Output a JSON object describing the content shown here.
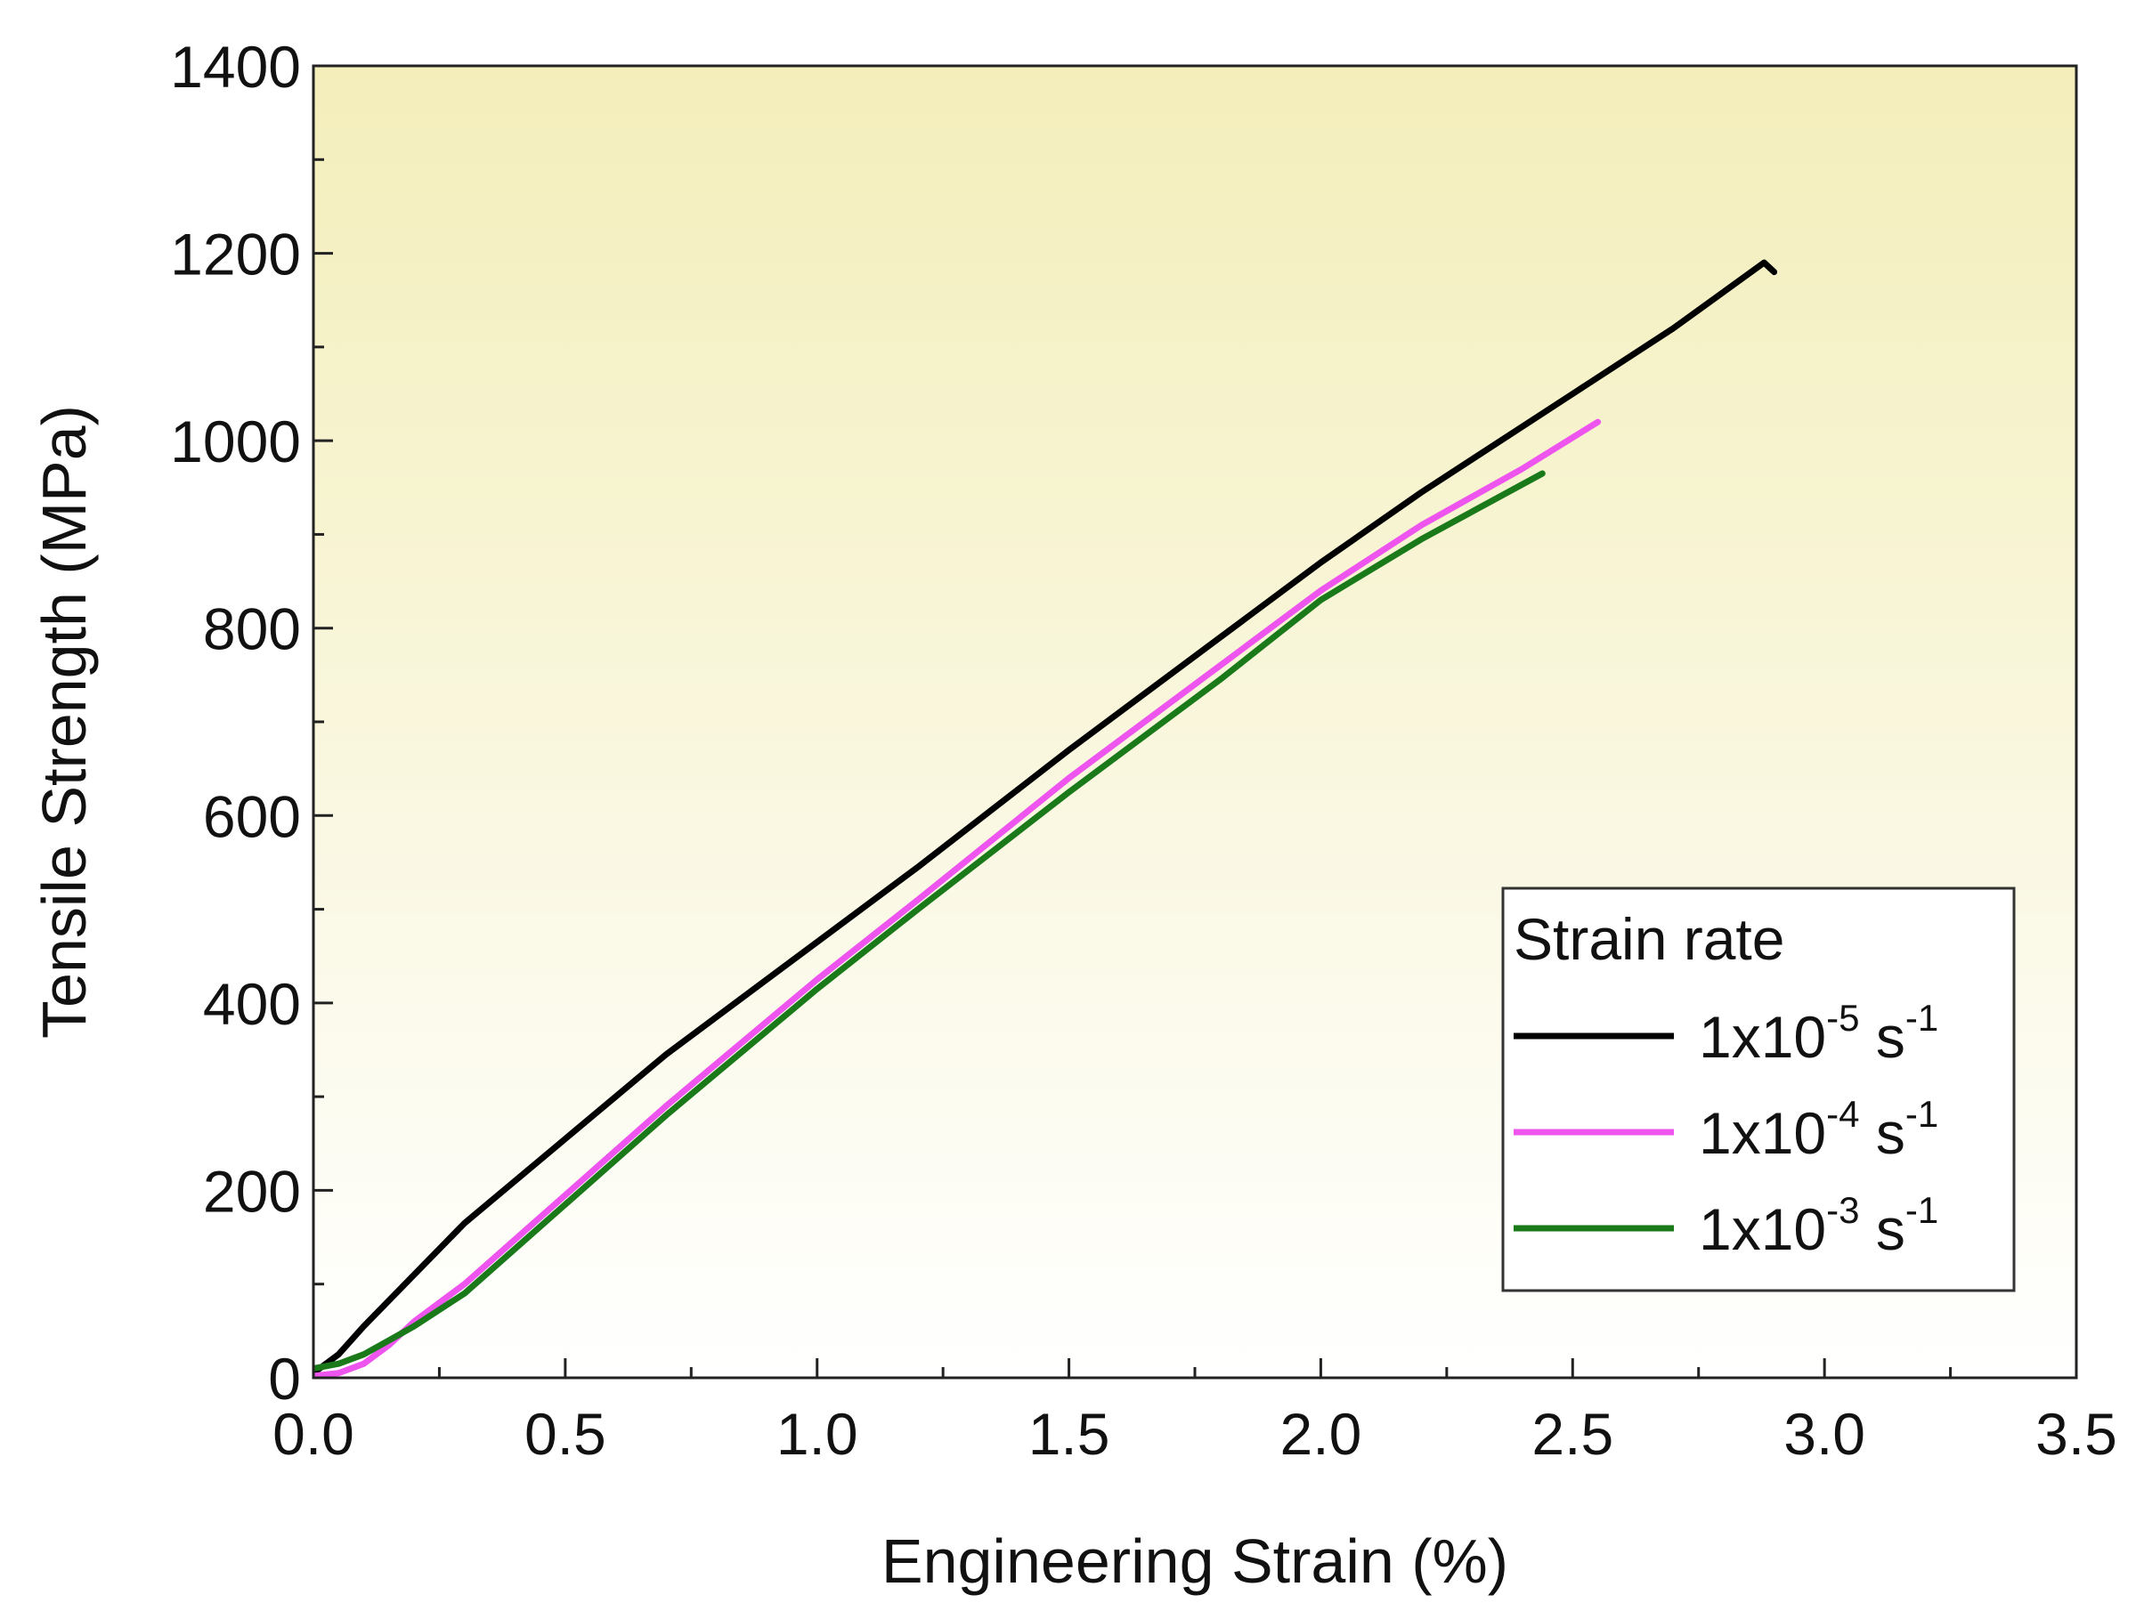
{
  "chart_data": {
    "type": "line",
    "title": "",
    "xlabel": "Engineering Strain (%)",
    "ylabel": "Tensile Strength (MPa)",
    "xlim": [
      0,
      3.5
    ],
    "ylim": [
      0,
      1400
    ],
    "xticks": [
      0.0,
      0.5,
      1.0,
      1.5,
      2.0,
      2.5,
      3.0,
      3.5
    ],
    "xtick_labels": [
      "0.0",
      "0.5",
      "1.0",
      "1.5",
      "2.0",
      "2.5",
      "3.0",
      "3.5"
    ],
    "yticks": [
      0,
      200,
      400,
      600,
      800,
      1000,
      1200,
      1400
    ],
    "ytick_labels": [
      "0",
      "200",
      "400",
      "600",
      "800",
      "1000",
      "1200",
      "1400"
    ],
    "grid": false,
    "background_gradient": [
      "#f3eeba",
      "#ffffff"
    ],
    "legend": {
      "title": "Strain rate",
      "position": "bottom-right"
    },
    "series": [
      {
        "name": "1x10-5 s-1",
        "label_base": "1x10",
        "label_exp": "-5",
        "label_unit": " s",
        "label_unit_exp": "-1",
        "color": "#000000",
        "x": [
          0.0,
          0.05,
          0.1,
          0.2,
          0.3,
          0.5,
          0.7,
          1.0,
          1.2,
          1.5,
          1.8,
          2.0,
          2.2,
          2.5,
          2.7,
          2.88,
          2.9
        ],
        "y": [
          5,
          25,
          55,
          110,
          165,
          255,
          345,
          465,
          545,
          670,
          790,
          870,
          945,
          1050,
          1120,
          1190,
          1180
        ]
      },
      {
        "name": "1x10-4 s-1",
        "label_base": "1x10",
        "label_exp": "-4",
        "label_unit": " s",
        "label_unit_exp": "-1",
        "color": "#ee55ee",
        "x": [
          0.0,
          0.05,
          0.1,
          0.15,
          0.2,
          0.3,
          0.5,
          0.7,
          1.0,
          1.2,
          1.5,
          1.8,
          2.0,
          2.2,
          2.4,
          2.55
        ],
        "y": [
          2,
          5,
          15,
          35,
          60,
          100,
          195,
          290,
          425,
          510,
          640,
          760,
          840,
          910,
          970,
          1020
        ]
      },
      {
        "name": "1x10-3 s-1",
        "label_base": "1x10",
        "label_exp": "-3",
        "label_unit": " s",
        "label_unit_exp": "-1",
        "color": "#1a7a1a",
        "x": [
          0.0,
          0.05,
          0.1,
          0.15,
          0.2,
          0.3,
          0.5,
          0.7,
          1.0,
          1.2,
          1.5,
          1.8,
          2.0,
          2.2,
          2.44
        ],
        "y": [
          10,
          15,
          25,
          40,
          55,
          90,
          185,
          280,
          415,
          500,
          625,
          745,
          830,
          895,
          965
        ]
      }
    ]
  }
}
